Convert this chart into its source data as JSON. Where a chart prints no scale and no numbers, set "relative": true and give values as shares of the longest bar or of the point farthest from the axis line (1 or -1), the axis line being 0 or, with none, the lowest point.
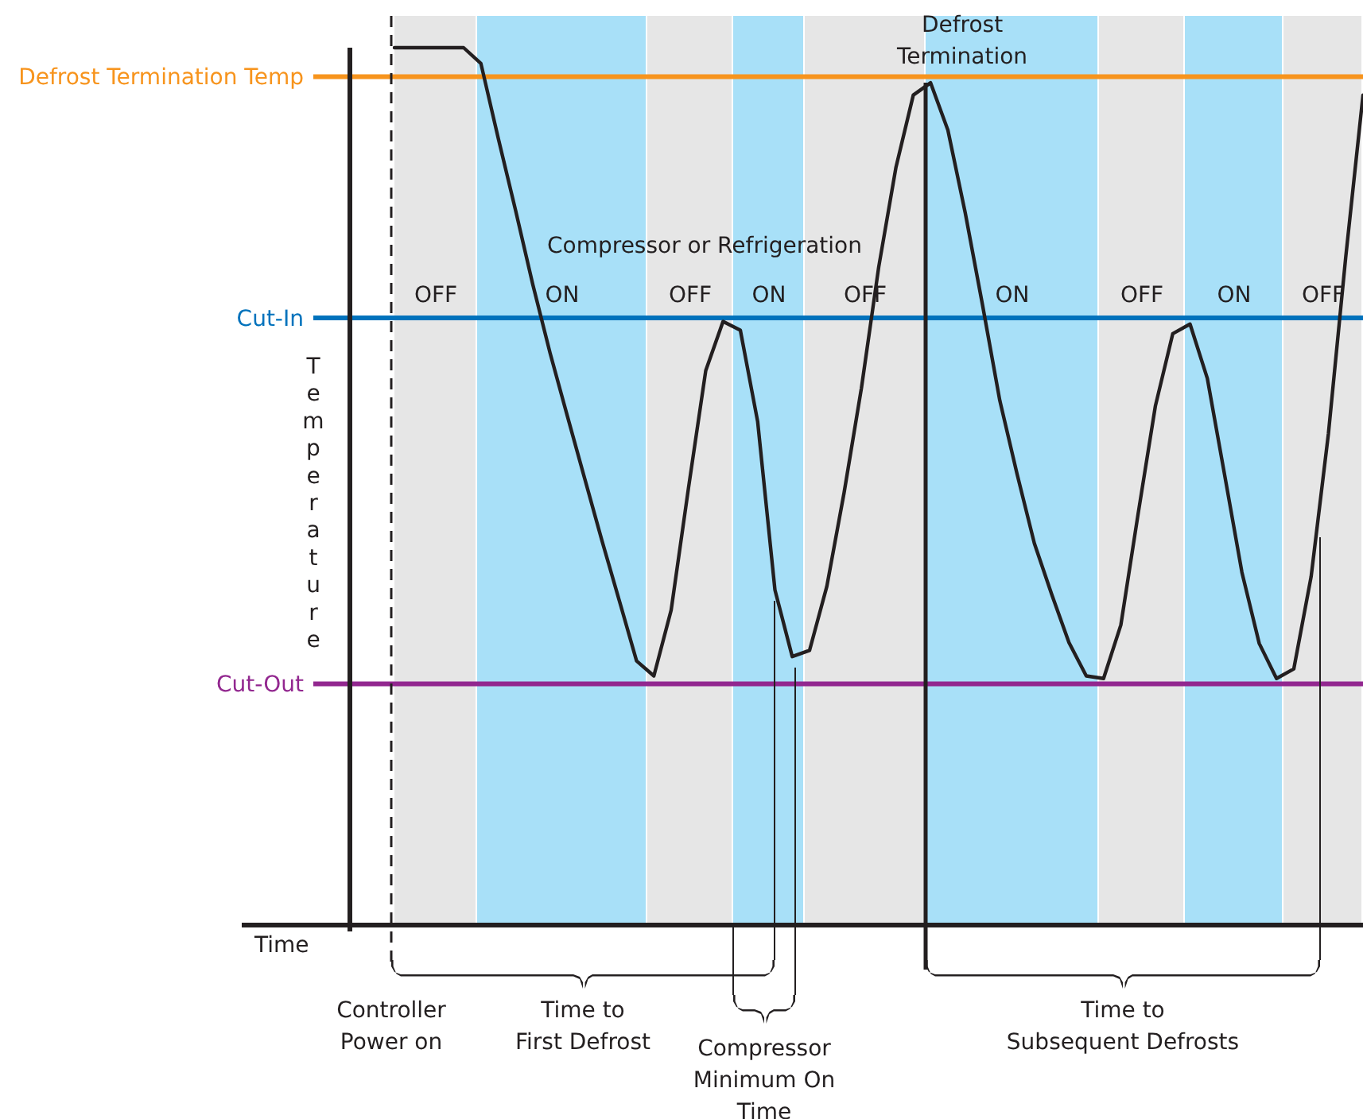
{
  "chart_data": {
    "type": "line",
    "relative": true,
    "xlabel": "Time",
    "ylabel": "Temperature",
    "line_style": "solid",
    "categories": [
      null,
      null,
      null,
      null,
      null,
      null,
      null,
      null,
      null,
      null,
      null,
      null,
      null,
      null,
      null,
      null,
      null,
      null,
      null,
      null,
      null,
      null,
      null,
      null,
      null,
      null,
      null,
      null,
      null,
      null,
      null,
      null,
      null,
      null,
      null,
      null,
      null,
      null,
      null,
      null,
      null,
      null,
      null,
      null,
      null,
      null,
      null,
      null,
      null,
      null,
      null,
      null,
      null,
      null,
      null,
      null,
      null
    ],
    "series": [
      {
        "color": "#231f20",
        "values": [
          1,
          1,
          1,
          1,
          1,
          0.982,
          0.897,
          0.815,
          0.73,
          0.652,
          0.58,
          0.509,
          0.438,
          0.37,
          0.301,
          0.284,
          0.359,
          0.498,
          0.632,
          0.688,
          0.678,
          0.574,
          0.382,
          0.306,
          0.313,
          0.386,
          0.493,
          0.612,
          0.75,
          0.864,
          0.946,
          0.96,
          0.906,
          0.812,
          0.707,
          0.598,
          0.514,
          0.435,
          0.377,
          0.322,
          0.284,
          0.281,
          0.342,
          0.469,
          0.592,
          0.674,
          0.685,
          0.623,
          0.513,
          0.402,
          0.321,
          0.281,
          0.292,
          0.397,
          0.56,
          0.761,
          0.946
        ]
      }
    ],
    "ref_lines": [
      {
        "axis": "y",
        "value": 0.967,
        "label": "Defrost Termination Temp",
        "color": "#f7941d"
      },
      {
        "axis": "y",
        "value": 0.692,
        "label": "Cut-In",
        "color": "#0072bc"
      },
      {
        "axis": "y",
        "value": 0.275,
        "label": "Cut-Out",
        "color": "#92278f"
      }
    ],
    "annotations": [
      "Compressor or Refrigeration",
      "OFF",
      "ON",
      "OFF",
      "ON",
      "OFF",
      "ON",
      "OFF",
      "ON",
      "OFF",
      "Defrost\nTermination",
      "Controller\nPower on",
      "Time to\nFirst Defrost",
      "Compressor\nMinimum On\nTime",
      "Time to\nSubsequent Defrosts"
    ]
  }
}
